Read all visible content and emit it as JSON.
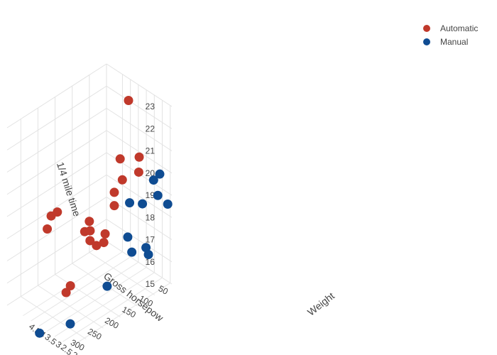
{
  "chart_data": {
    "type": "scatter",
    "dimensions": "3d",
    "axes": {
      "x": {
        "label": "Weight",
        "ticks": [
          "1.5",
          "2",
          "2.5",
          "3",
          "3.5",
          "4",
          "4.5"
        ]
      },
      "y": {
        "label": "Gross horsepow",
        "ticks": [
          "50",
          "100",
          "150",
          "200",
          "250",
          "300"
        ]
      },
      "z": {
        "label": "1/4 mile time",
        "ticks": [
          "15",
          "16",
          "17",
          "18",
          "19",
          "20",
          "21",
          "22",
          "23"
        ]
      }
    },
    "legend_position": "top-right",
    "series": [
      {
        "name": "Automatic",
        "color": "#C0392B",
        "points": [
          {
            "wt": 3.19,
            "hp": 62,
            "qsec": 20.0
          },
          {
            "wt": 3.15,
            "hp": 95,
            "qsec": 22.9
          },
          {
            "wt": 3.44,
            "hp": 123,
            "qsec": 18.3
          },
          {
            "wt": 3.44,
            "hp": 123,
            "qsec": 18.9
          },
          {
            "wt": 3.46,
            "hp": 105,
            "qsec": 20.22
          },
          {
            "wt": 3.215,
            "hp": 110,
            "qsec": 19.44
          },
          {
            "wt": 3.44,
            "hp": 175,
            "qsec": 17.02
          },
          {
            "wt": 3.57,
            "hp": 245,
            "qsec": 15.84
          },
          {
            "wt": 4.07,
            "hp": 180,
            "qsec": 17.4
          },
          {
            "wt": 3.73,
            "hp": 180,
            "qsec": 17.6
          },
          {
            "wt": 3.78,
            "hp": 180,
            "qsec": 18.0
          },
          {
            "wt": 5.25,
            "hp": 205,
            "qsec": 17.98
          },
          {
            "wt": 5.424,
            "hp": 215,
            "qsec": 17.82
          },
          {
            "wt": 5.345,
            "hp": 230,
            "qsec": 17.42
          },
          {
            "wt": 2.465,
            "hp": 97,
            "qsec": 20.01
          },
          {
            "wt": 3.52,
            "hp": 150,
            "qsec": 16.87
          },
          {
            "wt": 3.435,
            "hp": 150,
            "qsec": 17.3
          },
          {
            "wt": 3.84,
            "hp": 245,
            "qsec": 15.41
          },
          {
            "wt": 3.845,
            "hp": 175,
            "qsec": 17.05
          }
        ]
      },
      {
        "name": "Manual",
        "color": "#0F4C92",
        "points": [
          {
            "wt": 2.62,
            "hp": 110,
            "qsec": 16.46
          },
          {
            "wt": 2.875,
            "hp": 110,
            "qsec": 17.02
          },
          {
            "wt": 2.32,
            "hp": 93,
            "qsec": 18.61
          },
          {
            "wt": 2.2,
            "hp": 66,
            "qsec": 19.47
          },
          {
            "wt": 1.615,
            "hp": 52,
            "qsec": 18.52
          },
          {
            "wt": 1.835,
            "hp": 65,
            "qsec": 19.9
          },
          {
            "wt": 1.935,
            "hp": 66,
            "qsec": 18.9
          },
          {
            "wt": 2.14,
            "hp": 91,
            "qsec": 16.7
          },
          {
            "wt": 1.513,
            "hp": 113,
            "qsec": 16.9
          },
          {
            "wt": 3.17,
            "hp": 264,
            "qsec": 14.5
          },
          {
            "wt": 2.77,
            "hp": 175,
            "qsec": 15.5
          },
          {
            "wt": 3.57,
            "hp": 335,
            "qsec": 14.6
          },
          {
            "wt": 2.78,
            "hp": 109,
            "qsec": 18.6
          }
        ]
      }
    ]
  }
}
